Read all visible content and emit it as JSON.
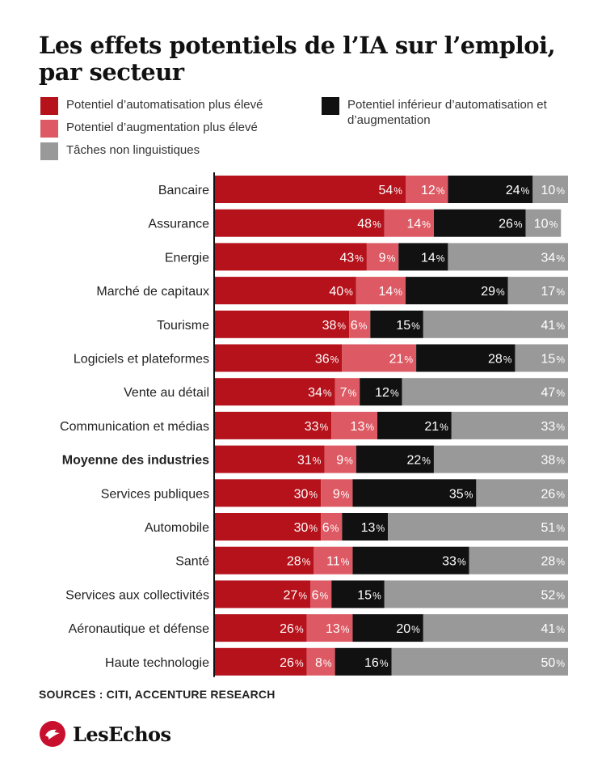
{
  "title": "Les effets potentiels de l’IA sur l’emploi, par secteur",
  "legend": {
    "items": [
      {
        "label": "Potentiel d’automatisation plus élevé",
        "color": "#b5121b"
      },
      {
        "label": "Potentiel d’augmentation plus élevé",
        "color": "#dd5a64"
      },
      {
        "label": "Tâches non linguistiques",
        "color": "#999999"
      },
      {
        "label": "Potentiel inférieur d’automatisation et d’augmentation",
        "color": "#111111"
      }
    ]
  },
  "chart_data": {
    "type": "bar",
    "orientation": "horizontal",
    "stacked": true,
    "categories": [
      "Bancaire",
      "Assurance",
      "Energie",
      "Marché de capitaux",
      "Tourisme",
      "Logiciels et plateformes",
      "Vente au détail",
      "Communication et médias",
      "Moyenne des industries",
      "Services publiques",
      "Automobile",
      "Santé",
      "Services aux collectivités",
      "Aéronautique et défense",
      "Haute technologie"
    ],
    "highlighted_category": "Moyenne des industries",
    "unit": "%",
    "series": [
      {
        "name": "Potentiel d’automatisation plus élevé",
        "color": "#b5121b",
        "values": [
          54,
          48,
          43,
          40,
          38,
          36,
          34,
          33,
          31,
          30,
          30,
          28,
          27,
          26,
          26
        ]
      },
      {
        "name": "Potentiel d’augmentation plus élevé",
        "color": "#dd5a64",
        "values": [
          12,
          14,
          9,
          14,
          6,
          21,
          7,
          13,
          9,
          9,
          6,
          11,
          6,
          13,
          8
        ]
      },
      {
        "name": "Potentiel inférieur d’automatisation et d’augmentation",
        "color": "#111111",
        "values": [
          24,
          26,
          14,
          29,
          15,
          28,
          12,
          21,
          22,
          35,
          13,
          33,
          15,
          20,
          16
        ]
      },
      {
        "name": "Tâches non linguistiques",
        "color": "#999999",
        "values": [
          10,
          10,
          34,
          17,
          41,
          15,
          47,
          33,
          38,
          26,
          51,
          28,
          52,
          41,
          50
        ]
      }
    ],
    "xlim": [
      0,
      100
    ],
    "grid": false,
    "legend_position": "top"
  },
  "source": "SOURCES : CITI, ACCENTURE RESEARCH",
  "brand": {
    "name": "LesEchos",
    "logo_icon": "les-echos-logo-icon",
    "logo_color": "#c8102e"
  }
}
